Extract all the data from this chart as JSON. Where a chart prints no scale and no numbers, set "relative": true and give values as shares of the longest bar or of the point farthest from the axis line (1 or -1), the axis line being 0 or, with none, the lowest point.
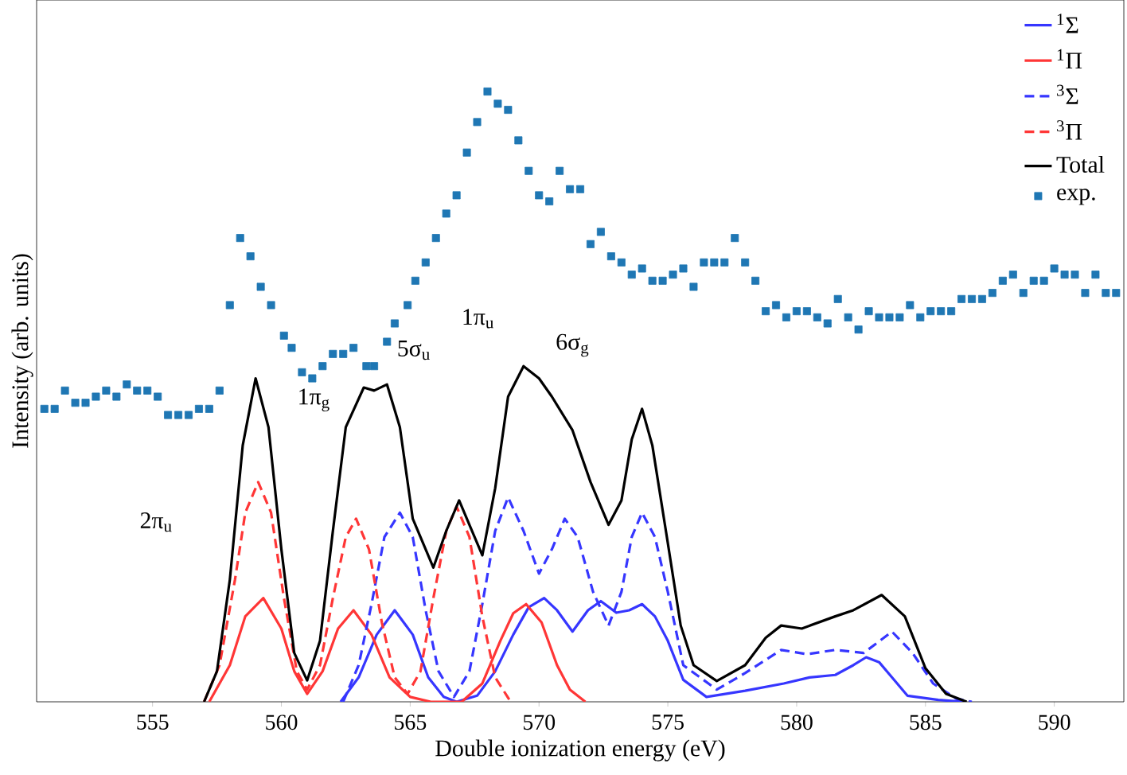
{
  "chart_data": {
    "type": "line",
    "relative": true,
    "xlabel": "Double ionization energy (eV)",
    "ylabel": "Intensity (arb. units)",
    "xlim": [
      550.5,
      592.7
    ],
    "xticks": [
      555,
      560,
      565,
      570,
      575,
      580,
      585,
      590
    ],
    "legend": "top right",
    "marker": "none",
    "grid": false,
    "series": [
      {
        "name": "$^{1}$Σ",
        "color": "#3636ff",
        "line_style": "solid",
        "x": [
          562.3,
          563.0,
          563.7,
          564.4,
          565.1,
          565.7,
          566.3,
          566.8,
          567.6,
          568.3,
          569.0,
          569.6,
          570.2,
          570.7,
          571.3,
          571.9,
          572.4,
          573.0,
          573.5,
          574.0,
          574.5,
          575.0,
          575.6,
          576.5,
          578.0,
          579.5,
          580.5,
          581.5,
          582.2,
          582.7,
          583.2,
          583.7,
          584.3,
          585.5,
          586.5
        ],
        "values": [
          0,
          0.04,
          0.11,
          0.15,
          0.11,
          0.04,
          0.008,
          0,
          0.01,
          0.05,
          0.11,
          0.155,
          0.17,
          0.15,
          0.115,
          0.15,
          0.165,
          0.146,
          0.15,
          0.16,
          0.14,
          0.1,
          0.036,
          0.008,
          0.018,
          0.03,
          0.04,
          0.044,
          0.06,
          0.073,
          0.065,
          0.04,
          0.01,
          0.003,
          0
        ]
      },
      {
        "name": "$^{1}$Π",
        "color": "#ff3636",
        "line_style": "solid",
        "x": [
          557.2,
          558.0,
          558.6,
          559.3,
          560.0,
          560.5,
          561.0,
          561.6,
          562.2,
          562.8,
          563.5,
          564.2,
          565.0,
          565.8,
          567.0,
          567.8,
          568.5,
          569.0,
          569.5,
          570.1,
          570.7,
          571.2,
          571.8
        ],
        "values": [
          0,
          0.06,
          0.14,
          0.17,
          0.12,
          0.05,
          0.013,
          0.05,
          0.12,
          0.15,
          0.11,
          0.04,
          0.008,
          0,
          0,
          0.03,
          0.1,
          0.145,
          0.16,
          0.13,
          0.06,
          0.02,
          0
        ]
      },
      {
        "name": "$^{3}$Σ",
        "color": "#3636ff",
        "line_style": "dashed",
        "x": [
          562.4,
          563.0,
          563.5,
          564.0,
          564.6,
          565.1,
          565.6,
          566.1,
          566.7,
          567.3,
          567.8,
          568.3,
          568.8,
          569.4,
          570.0,
          570.5,
          571.0,
          571.5,
          572.1,
          572.7,
          573.2,
          573.6,
          574.0,
          574.5,
          575.0,
          575.6,
          576.9,
          578.0,
          579.4,
          580.4,
          581.5,
          582.6,
          583.7,
          584.5,
          585.3,
          586.2,
          586.8
        ],
        "values": [
          0,
          0.06,
          0.16,
          0.27,
          0.31,
          0.27,
          0.15,
          0.05,
          0.008,
          0.05,
          0.16,
          0.28,
          0.335,
          0.28,
          0.21,
          0.25,
          0.3,
          0.27,
          0.18,
          0.125,
          0.18,
          0.27,
          0.31,
          0.27,
          0.18,
          0.06,
          0.02,
          0.047,
          0.085,
          0.078,
          0.085,
          0.08,
          0.115,
          0.08,
          0.03,
          0.005,
          0
        ]
      },
      {
        "name": "$^{3}$Π",
        "color": "#ff3636",
        "line_style": "dashed",
        "x": [
          557.0,
          557.6,
          558.2,
          558.6,
          559.1,
          559.6,
          560.1,
          560.6,
          561.0,
          561.5,
          562.0,
          562.5,
          562.9,
          563.4,
          563.9,
          564.4,
          564.9,
          565.4,
          565.9,
          566.4,
          566.8,
          567.3,
          567.8,
          568.3,
          568.9
        ],
        "values": [
          0,
          0.06,
          0.2,
          0.31,
          0.36,
          0.31,
          0.17,
          0.05,
          0.02,
          0.06,
          0.17,
          0.27,
          0.3,
          0.25,
          0.13,
          0.04,
          0.013,
          0.05,
          0.17,
          0.28,
          0.32,
          0.27,
          0.14,
          0.04,
          0
        ]
      },
      {
        "name": "Total",
        "color": "#000000",
        "line_style": "solid",
        "x": [
          557.0,
          557.5,
          558.0,
          558.5,
          559.0,
          559.5,
          560.0,
          560.5,
          561.0,
          561.5,
          562.0,
          562.5,
          563.2,
          563.6,
          564.1,
          564.6,
          565.1,
          565.9,
          566.4,
          566.9,
          567.3,
          567.8,
          568.3,
          568.8,
          569.4,
          570.0,
          570.5,
          571.3,
          572.0,
          572.7,
          573.2,
          573.6,
          574.0,
          574.4,
          575.0,
          575.5,
          576.0,
          576.9,
          578.0,
          578.8,
          579.4,
          580.2,
          581.5,
          582.2,
          583.3,
          584.2,
          585.0,
          585.8,
          586.6
        ],
        "values": [
          0,
          0.05,
          0.2,
          0.42,
          0.53,
          0.45,
          0.25,
          0.08,
          0.035,
          0.1,
          0.28,
          0.45,
          0.515,
          0.51,
          0.52,
          0.45,
          0.3,
          0.22,
          0.28,
          0.33,
          0.29,
          0.24,
          0.35,
          0.5,
          0.55,
          0.53,
          0.5,
          0.445,
          0.36,
          0.29,
          0.33,
          0.43,
          0.48,
          0.42,
          0.26,
          0.125,
          0.06,
          0.034,
          0.06,
          0.105,
          0.125,
          0.12,
          0.14,
          0.15,
          0.175,
          0.14,
          0.055,
          0.013,
          0
        ]
      },
      {
        "name": "exp.",
        "type": "scatter",
        "color": "#1f77b4",
        "x": [
          550.8,
          551.2,
          551.6,
          552.0,
          552.4,
          552.8,
          553.2,
          553.6,
          554.0,
          554.4,
          554.8,
          555.2,
          555.6,
          556.0,
          556.4,
          556.8,
          557.2,
          557.6,
          558.0,
          558.4,
          558.8,
          559.2,
          559.6,
          560.1,
          560.4,
          560.8,
          561.2,
          561.6,
          562.0,
          562.4,
          562.8,
          563.3,
          563.6,
          564.1,
          564.4,
          564.9,
          565.2,
          565.6,
          566.0,
          566.4,
          566.8,
          567.2,
          567.6,
          568.0,
          568.4,
          568.8,
          569.2,
          569.6,
          570.0,
          570.4,
          570.8,
          571.2,
          571.6,
          572.0,
          572.4,
          572.8,
          573.2,
          573.6,
          574.0,
          574.4,
          574.8,
          575.2,
          575.6,
          576.0,
          576.4,
          576.8,
          577.2,
          577.6,
          578.0,
          578.4,
          578.8,
          579.2,
          579.6,
          580.0,
          580.4,
          580.8,
          581.2,
          581.6,
          582.0,
          582.4,
          582.8,
          583.2,
          583.6,
          584.0,
          584.4,
          584.8,
          585.2,
          585.6,
          586.0,
          586.4,
          586.8,
          587.2,
          587.6,
          588.0,
          588.4,
          588.8,
          589.2,
          589.6,
          590.0,
          590.4,
          590.8,
          591.2,
          591.6,
          592.0,
          592.4
        ],
        "values": [
          0.48,
          0.48,
          0.51,
          0.49,
          0.49,
          0.5,
          0.51,
          0.5,
          0.52,
          0.51,
          0.51,
          0.5,
          0.47,
          0.47,
          0.47,
          0.48,
          0.48,
          0.51,
          0.65,
          0.76,
          0.73,
          0.68,
          0.65,
          0.6,
          0.58,
          0.54,
          0.53,
          0.55,
          0.57,
          0.57,
          0.58,
          0.55,
          0.55,
          0.59,
          0.62,
          0.65,
          0.69,
          0.72,
          0.76,
          0.8,
          0.83,
          0.9,
          0.95,
          1.0,
          0.98,
          0.97,
          0.92,
          0.87,
          0.83,
          0.82,
          0.87,
          0.84,
          0.84,
          0.75,
          0.77,
          0.73,
          0.72,
          0.7,
          0.71,
          0.69,
          0.69,
          0.7,
          0.71,
          0.68,
          0.72,
          0.72,
          0.72,
          0.76,
          0.72,
          0.69,
          0.64,
          0.65,
          0.63,
          0.64,
          0.64,
          0.63,
          0.62,
          0.66,
          0.63,
          0.61,
          0.64,
          0.63,
          0.63,
          0.63,
          0.65,
          0.63,
          0.64,
          0.64,
          0.64,
          0.66,
          0.66,
          0.66,
          0.67,
          0.69,
          0.7,
          0.67,
          0.69,
          0.69,
          0.71,
          0.7,
          0.7,
          0.67,
          0.7,
          0.67,
          0.67
        ],
        "marker": "square"
      }
    ],
    "annotations": [
      "2π$_{u}$",
      "1π$_{g}$",
      "5σ$_{u}$",
      "1π$_{u}$",
      "6σ$_{g}$"
    ]
  }
}
